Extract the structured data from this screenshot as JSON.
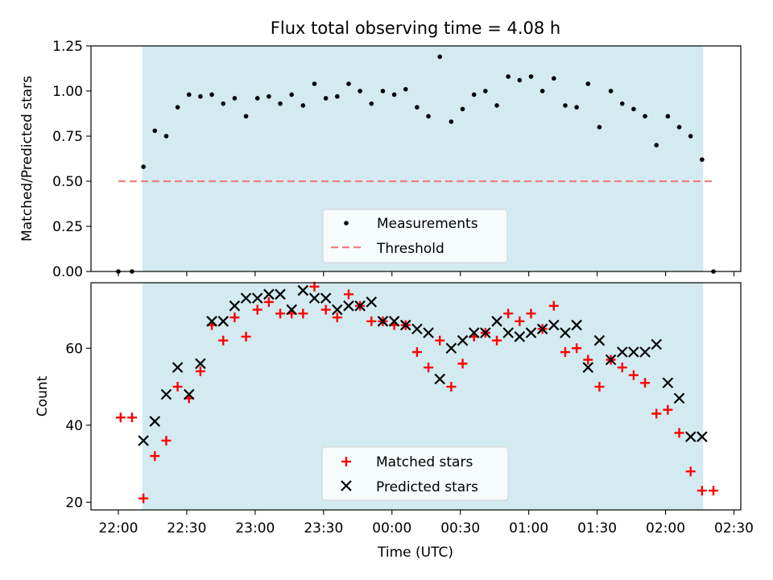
{
  "figure": {
    "title": "Flux total observing time = 4.08 h"
  },
  "chart_data": [
    {
      "type": "scatter",
      "ylabel": "Matched/Predicted stars",
      "xlabel": "",
      "ylim": [
        0,
        1.25
      ],
      "yticks": [
        "0.00",
        "0.25",
        "0.50",
        "0.75",
        "1.00",
        "1.25"
      ],
      "yticks_values": [
        0,
        0.25,
        0.5,
        0.75,
        1.0,
        1.25
      ],
      "shaded_region": {
        "x_start_min": 10.5,
        "x_end_min": 256.5,
        "color": "#d3eaf1"
      },
      "threshold": {
        "name": "Threshold",
        "value": 0.5,
        "x_start_min": 0,
        "x_end_min": 262,
        "color": "#f08080"
      },
      "legend_position": "lower center",
      "legend": [
        "Measurements",
        "Threshold"
      ],
      "series": [
        {
          "name": "Measurements",
          "marker": "dot",
          "color": "#000000",
          "x_min": [
            0,
            6,
            11,
            16,
            21,
            26,
            31,
            36,
            41,
            46,
            51,
            56,
            61,
            66,
            71,
            76,
            81,
            86,
            91,
            96,
            101,
            106,
            111,
            116,
            121,
            126,
            131,
            136,
            141,
            146,
            151,
            156,
            161,
            166,
            171,
            176,
            181,
            186,
            191,
            196,
            201,
            206,
            211,
            216,
            221,
            226,
            231,
            236,
            241,
            246,
            251,
            256,
            261
          ],
          "y": [
            0.0,
            0.0,
            0.58,
            0.78,
            0.75,
            0.91,
            0.98,
            0.97,
            0.98,
            0.93,
            0.96,
            0.86,
            0.96,
            0.97,
            0.93,
            0.98,
            0.92,
            1.04,
            0.96,
            0.97,
            1.04,
            1.0,
            0.93,
            1.0,
            0.98,
            1.01,
            0.91,
            0.86,
            1.19,
            0.83,
            0.9,
            0.98,
            1.0,
            0.92,
            1.08,
            1.06,
            1.08,
            1.0,
            1.07,
            0.92,
            0.91,
            1.04,
            0.8,
            1.0,
            0.93,
            0.9,
            0.86,
            0.7,
            0.86,
            0.8,
            0.75,
            0.62,
            0.0
          ]
        }
      ]
    },
    {
      "type": "scatter",
      "ylabel": "Count",
      "xlabel": "Time (UTC)",
      "ylim": [
        18,
        77
      ],
      "yticks": [
        "20",
        "40",
        "60"
      ],
      "yticks_values": [
        20,
        40,
        60
      ],
      "xlim_min": [
        -12,
        273
      ],
      "xticks": [
        "22:00",
        "22:30",
        "23:00",
        "23:30",
        "00:00",
        "00:30",
        "01:00",
        "01:30",
        "02:00",
        "02:30"
      ],
      "xticks_min": [
        0,
        30,
        60,
        90,
        120,
        150,
        180,
        210,
        240,
        270
      ],
      "x_origin": "22:00",
      "shaded_region": {
        "x_start_min": 10.5,
        "x_end_min": 256.5,
        "color": "#d3eaf1"
      },
      "legend_position": "lower center",
      "legend": [
        "Matched stars",
        "Predicted stars"
      ],
      "series": [
        {
          "name": "Matched stars",
          "marker": "plus",
          "color": "#ff0000",
          "x_min": [
            1,
            6,
            11,
            16,
            21,
            26,
            31,
            36,
            41,
            46,
            51,
            56,
            61,
            66,
            71,
            76,
            81,
            86,
            91,
            96,
            101,
            106,
            111,
            116,
            121,
            126,
            131,
            136,
            141,
            146,
            151,
            156,
            161,
            166,
            171,
            176,
            181,
            186,
            191,
            196,
            201,
            206,
            211,
            216,
            221,
            226,
            231,
            236,
            241,
            246,
            251,
            256,
            261
          ],
          "y": [
            42,
            42,
            21,
            32,
            36,
            50,
            47,
            54,
            66,
            62,
            68,
            63,
            70,
            72,
            69,
            69,
            69,
            76,
            70,
            68,
            74,
            71,
            67,
            67,
            66,
            66,
            59,
            55,
            62,
            50,
            56,
            63,
            64,
            62,
            69,
            67,
            69,
            65,
            71,
            59,
            60,
            57,
            50,
            57,
            55,
            53,
            51,
            43,
            44,
            38,
            28,
            23,
            23
          ]
        },
        {
          "name": "Predicted stars",
          "marker": "x",
          "color": "#000000",
          "x_min": [
            11,
            16,
            21,
            26,
            31,
            36,
            41,
            46,
            51,
            56,
            61,
            66,
            71,
            76,
            81,
            86,
            91,
            96,
            101,
            106,
            111,
            116,
            121,
            126,
            131,
            136,
            141,
            146,
            151,
            156,
            161,
            166,
            171,
            176,
            181,
            186,
            191,
            196,
            201,
            206,
            211,
            216,
            221,
            226,
            231,
            236,
            241,
            246,
            251,
            256
          ],
          "y": [
            36,
            41,
            48,
            55,
            48,
            56,
            67,
            67,
            71,
            73,
            73,
            74,
            74,
            70,
            75,
            73,
            73,
            70,
            71,
            71,
            72,
            67,
            67,
            66,
            65,
            64,
            52,
            60,
            62,
            64,
            64,
            67,
            64,
            63,
            64,
            65,
            66,
            64,
            66,
            55,
            62,
            57,
            59,
            59,
            59,
            61,
            51,
            47,
            37,
            37
          ]
        }
      ]
    }
  ]
}
